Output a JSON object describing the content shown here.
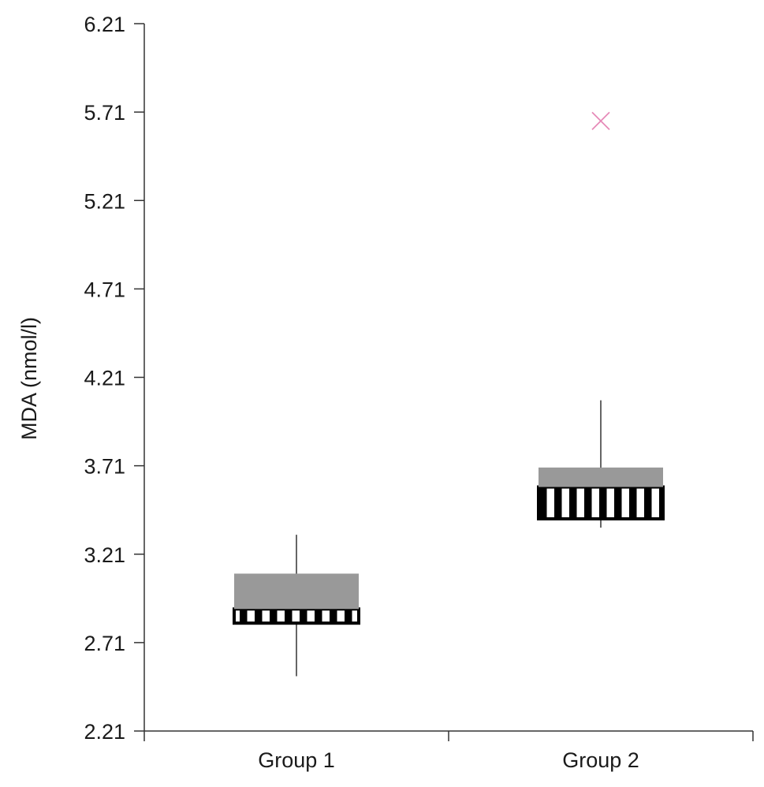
{
  "chart_data": {
    "type": "box",
    "ylabel": "MDA (nmol/l)",
    "xlabel": "",
    "ylim": [
      2.21,
      6.21
    ],
    "yticks": [
      "2.21",
      "2.71",
      "3.21",
      "3.71",
      "4.21",
      "4.71",
      "5.21",
      "5.71",
      "6.21"
    ],
    "categories": [
      "Group 1",
      "Group 2"
    ],
    "boxes": [
      {
        "category": "Group 1",
        "min": 2.52,
        "q1": 2.82,
        "median": 2.9,
        "q3": 3.1,
        "max": 3.32,
        "outliers": []
      },
      {
        "category": "Group 2",
        "min": 3.36,
        "q1": 3.41,
        "median": 3.59,
        "q3": 3.7,
        "max": 4.08,
        "outliers": [
          5.66
        ]
      }
    ],
    "colors": {
      "upper_box": "#999999",
      "lower_box_stripe": "#000000",
      "outlier": "#e68ab8",
      "axis": "#333333"
    }
  }
}
